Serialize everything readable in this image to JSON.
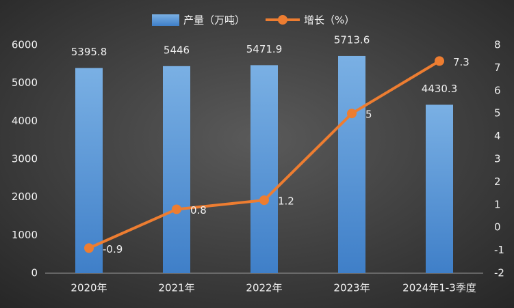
{
  "chart_data": {
    "type": "bar",
    "categories": [
      "2020年",
      "2021年",
      "2022年",
      "2023年",
      "2024年1-3季度"
    ],
    "series": [
      {
        "name": "产量（万吨）",
        "type": "bar",
        "color": "#5b9bd5",
        "values": [
          5395.8,
          5446,
          5471.9,
          5713.6,
          4430.3
        ]
      },
      {
        "name": "增长（%）",
        "type": "line",
        "axis": "y2",
        "color": "#ed7d31",
        "values": [
          -0.9,
          0.8,
          1.2,
          5,
          7.3
        ]
      }
    ],
    "ylim": [
      0,
      6000
    ],
    "yticks": [
      0,
      1000,
      2000,
      3000,
      4000,
      5000,
      6000
    ],
    "y2lim": [
      -2,
      8
    ],
    "y2ticks": [
      -2,
      -1,
      0,
      1,
      2,
      3,
      4,
      5,
      6,
      7,
      8
    ],
    "grid": false,
    "legend": "top"
  }
}
